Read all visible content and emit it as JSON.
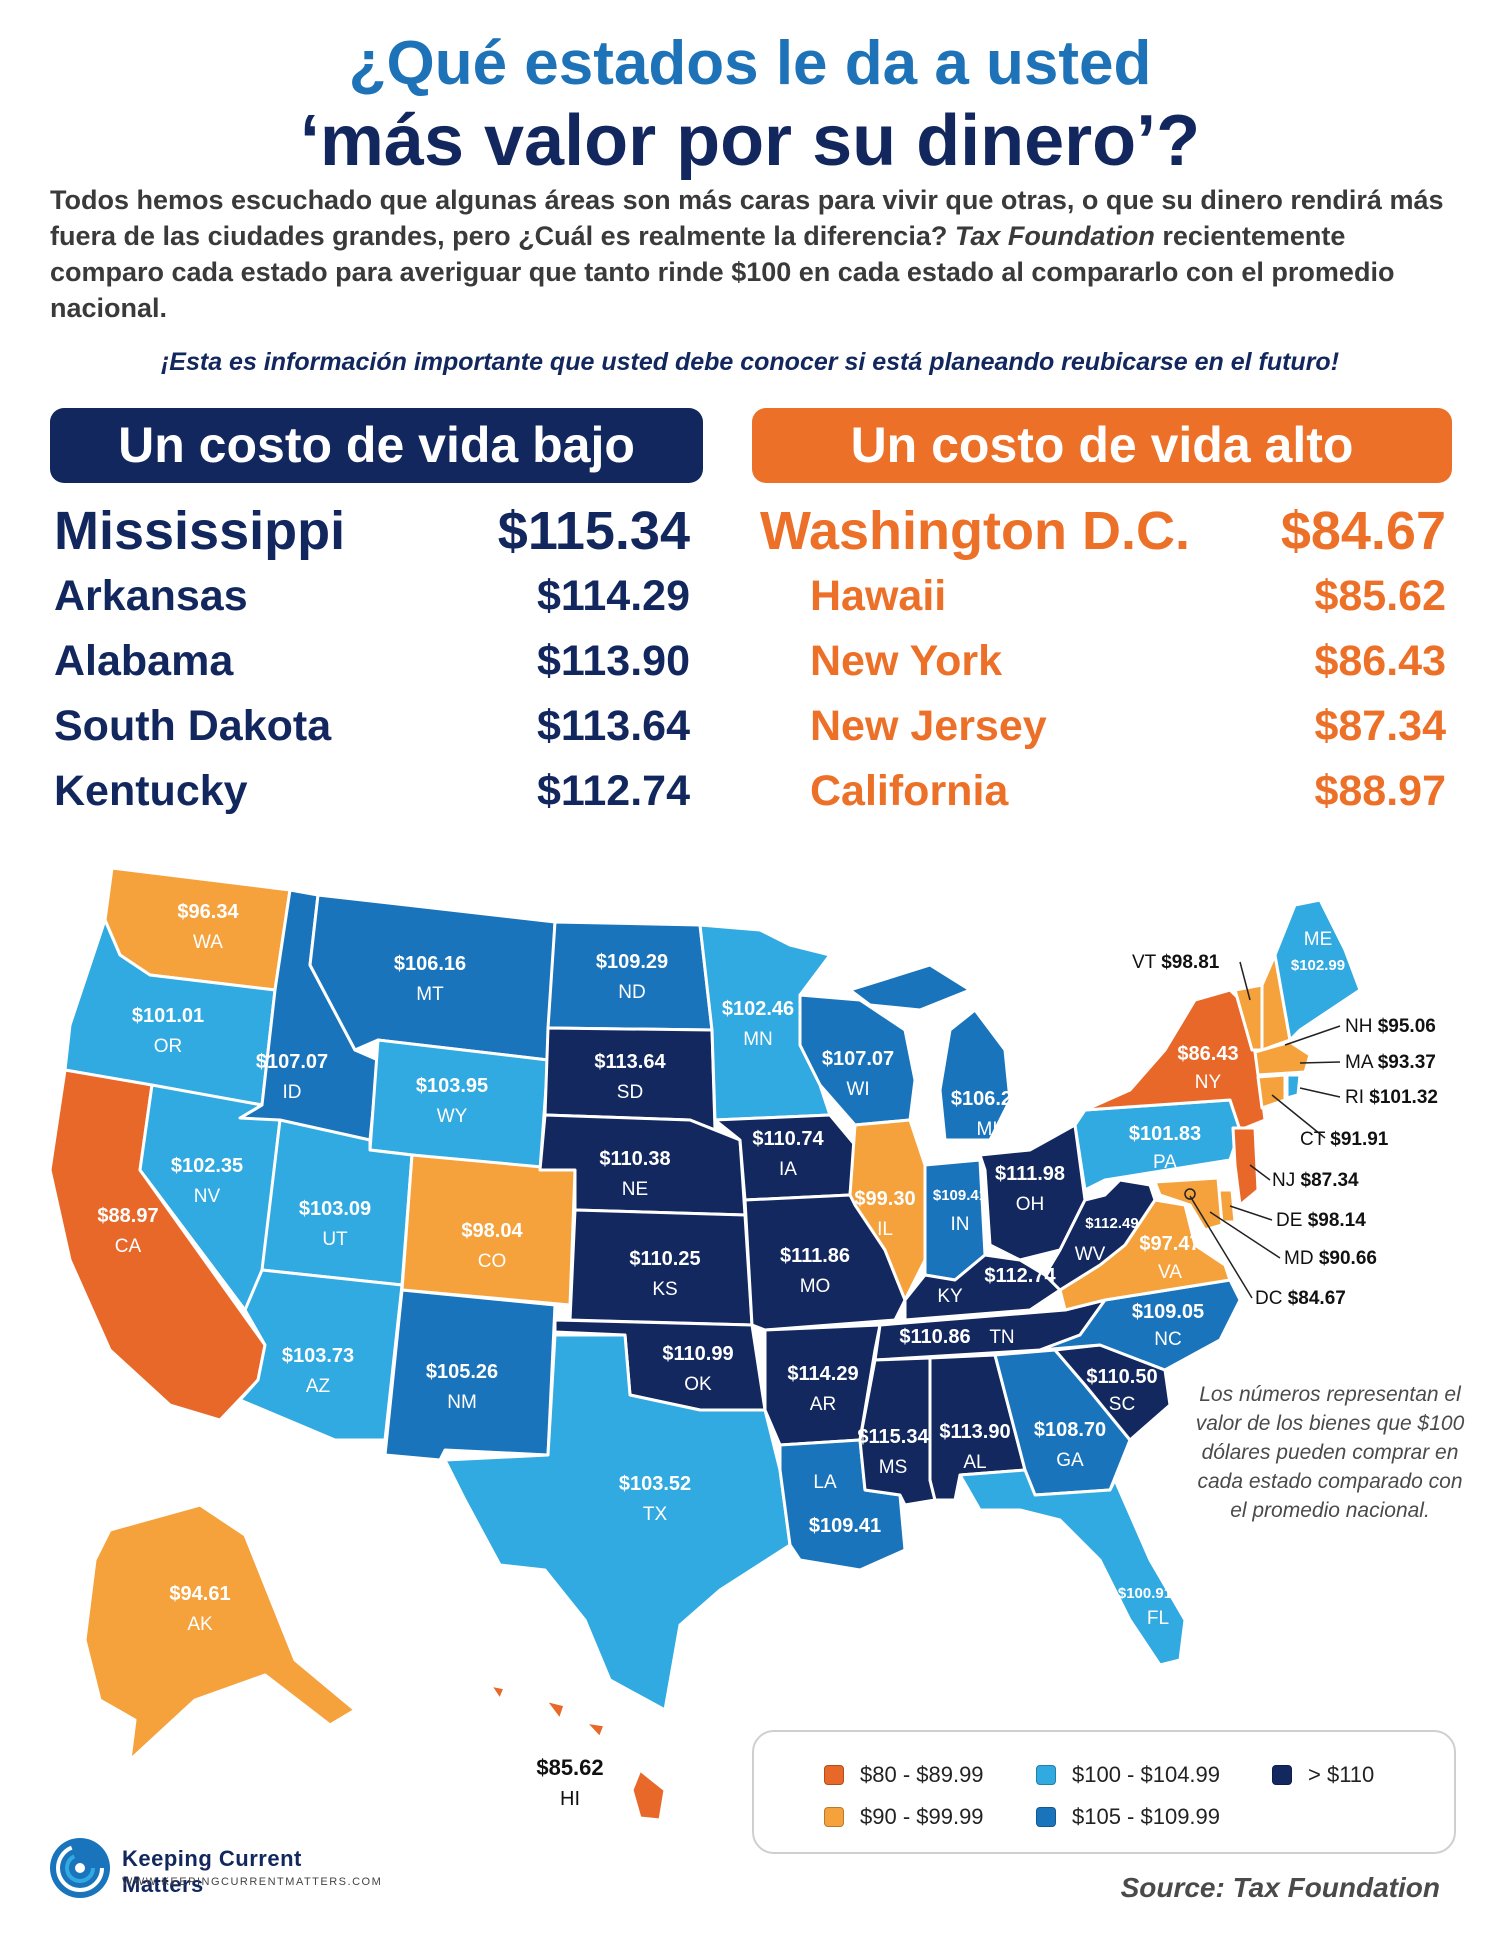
{
  "title": {
    "line1": "¿Qué estados le da a usted",
    "line2": "‘más valor por su dinero’?"
  },
  "intro": {
    "part1": "Todos hemos escuchado que algunas áreas son más caras para vivir que otras, o que su dinero rendirá más fuera de las ciudades grandes, pero ¿Cuál es realmente la diferencia? ",
    "source_name": "Tax Foundation",
    "part2": " recientemente comparo cada estado para averiguar que tanto rinde $100 en cada estado al compararlo con el promedio nacional."
  },
  "callout": "¡Esta es información importante que usted debe conocer si está planeando reubicarse en el futuro!",
  "low_cost": {
    "header": "Un costo de vida bajo",
    "rows": [
      {
        "name": "Mississippi",
        "value": "$115.34"
      },
      {
        "name": "Arkansas",
        "value": "$114.29"
      },
      {
        "name": "Alabama",
        "value": "$113.90"
      },
      {
        "name": "South Dakota",
        "value": "$113.64"
      },
      {
        "name": "Kentucky",
        "value": "$112.74"
      }
    ]
  },
  "high_cost": {
    "header": "Un costo de vida alto",
    "rows": [
      {
        "name": "Washington D.C.",
        "value": "$84.67"
      },
      {
        "name": "Hawaii",
        "value": "$85.62"
      },
      {
        "name": "New York",
        "value": "$86.43"
      },
      {
        "name": "New Jersey",
        "value": "$87.34"
      },
      {
        "name": "California",
        "value": "$88.97"
      }
    ]
  },
  "colors": {
    "c80": "#e8682a",
    "c90": "#f5a23d",
    "c100": "#31a9e1",
    "c105": "#1a74bb",
    "c110": "#13285e"
  },
  "map_states": [
    {
      "abbr": "WA",
      "value": "$96.34"
    },
    {
      "abbr": "OR",
      "value": "$101.01"
    },
    {
      "abbr": "CA",
      "value": "$88.97"
    },
    {
      "abbr": "ID",
      "value": "$107.07"
    },
    {
      "abbr": "NV",
      "value": "$102.35"
    },
    {
      "abbr": "MT",
      "value": "$106.16"
    },
    {
      "abbr": "WY",
      "value": "$103.95"
    },
    {
      "abbr": "UT",
      "value": "$103.09"
    },
    {
      "abbr": "AZ",
      "value": "$103.73"
    },
    {
      "abbr": "CO",
      "value": "$98.04"
    },
    {
      "abbr": "NM",
      "value": "$105.26"
    },
    {
      "abbr": "ND",
      "value": "$109.29"
    },
    {
      "abbr": "SD",
      "value": "$113.64"
    },
    {
      "abbr": "NE",
      "value": "$110.38"
    },
    {
      "abbr": "KS",
      "value": "$110.25"
    },
    {
      "abbr": "OK",
      "value": "$110.99"
    },
    {
      "abbr": "TX",
      "value": "$103.52"
    },
    {
      "abbr": "MN",
      "value": "$102.46"
    },
    {
      "abbr": "IA",
      "value": "$110.74"
    },
    {
      "abbr": "MO",
      "value": "$111.86"
    },
    {
      "abbr": "AR",
      "value": "$114.29"
    },
    {
      "abbr": "LA",
      "value": "$109.41"
    },
    {
      "abbr": "WI",
      "value": "$107.07"
    },
    {
      "abbr": "IL",
      "value": "$99.30"
    },
    {
      "abbr": "MI",
      "value": "$106.27"
    },
    {
      "abbr": "IN",
      "value": "$109.41"
    },
    {
      "abbr": "OH",
      "value": "$111.98"
    },
    {
      "abbr": "KY",
      "value": "$112.74"
    },
    {
      "abbr": "TN",
      "value": "$110.86"
    },
    {
      "abbr": "MS",
      "value": "$115.34"
    },
    {
      "abbr": "AL",
      "value": "$113.90"
    },
    {
      "abbr": "GA",
      "value": "$108.70"
    },
    {
      "abbr": "FL",
      "value": "$100.91"
    },
    {
      "abbr": "SC",
      "value": "$110.50"
    },
    {
      "abbr": "NC",
      "value": "$109.05"
    },
    {
      "abbr": "VA",
      "value": "$97.47"
    },
    {
      "abbr": "WV",
      "value": "$112.49"
    },
    {
      "abbr": "PA",
      "value": "$101.83"
    },
    {
      "abbr": "NY",
      "value": "$86.43"
    },
    {
      "abbr": "ME",
      "value": "$102.99"
    },
    {
      "abbr": "AK",
      "value": "$94.61"
    },
    {
      "abbr": "HI",
      "value": "$85.62"
    }
  ],
  "callout_states": [
    {
      "abbr": "VT",
      "value": "$98.81"
    },
    {
      "abbr": "NH",
      "value": "$95.06"
    },
    {
      "abbr": "MA",
      "value": "$93.37"
    },
    {
      "abbr": "RI",
      "value": "$101.32"
    },
    {
      "abbr": "CT",
      "value": "$91.91"
    },
    {
      "abbr": "NJ",
      "value": "$87.34"
    },
    {
      "abbr": "DE",
      "value": "$98.14"
    },
    {
      "abbr": "MD",
      "value": "$90.66"
    },
    {
      "abbr": "DC",
      "value": "$84.67"
    }
  ],
  "note": "Los números representan el valor de los bienes que $100 dólares pueden comprar en cada estado comparado con el promedio nacional.",
  "legend": {
    "items": [
      {
        "label": "$80 - $89.99",
        "color": "#e8682a"
      },
      {
        "label": "$100 - $104.99",
        "color": "#31a9e1"
      },
      {
        "label": "> $110",
        "color": "#13285e"
      },
      {
        "label": "$90 - $99.99",
        "color": "#f5a23d"
      },
      {
        "label": "$105 - $109.99",
        "color": "#1a74bb"
      }
    ]
  },
  "source": "Source: Tax Foundation",
  "logo": {
    "name": "Keeping Current Matters",
    "url": "WWW.KEEPINGCURRENTMATTERS.COM"
  }
}
